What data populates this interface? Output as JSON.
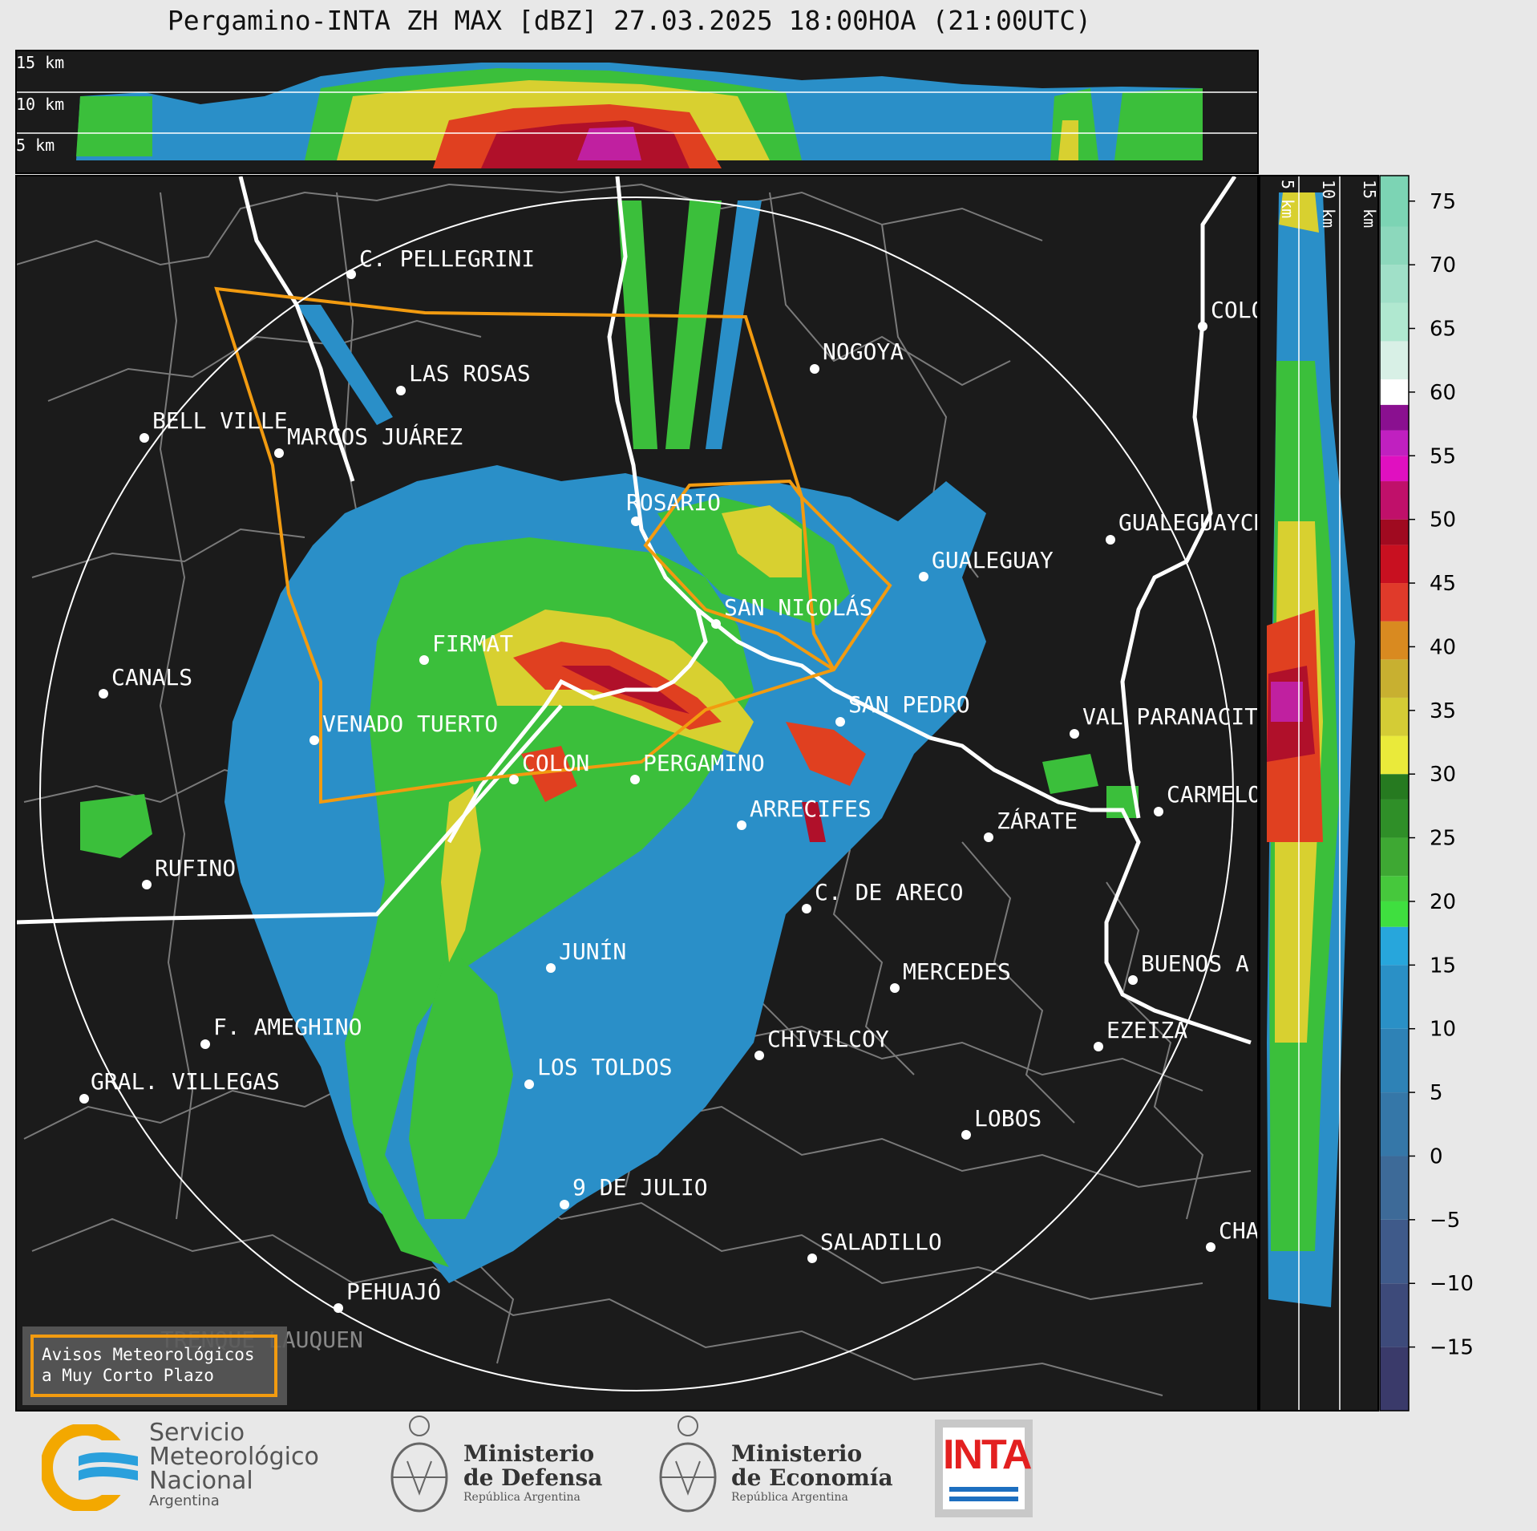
{
  "title": "Pergamino-INTA ZH MAX [dBZ] 27.03.2025 18:00HOA (21:00UTC)",
  "cross_section_top": {
    "labels": [
      "15 km",
      "10 km",
      "5 km"
    ]
  },
  "cross_section_right": {
    "labels": [
      "5 km",
      "10 km",
      "15 km"
    ]
  },
  "colorbar": {
    "ticks": [
      "75",
      "70",
      "65",
      "60",
      "55",
      "50",
      "45",
      "40",
      "35",
      "30",
      "25",
      "20",
      "15",
      "10",
      "5",
      "0",
      "−5",
      "−10",
      "−15"
    ],
    "range": [
      -20,
      77
    ]
  },
  "cities": [
    {
      "name": "C. PELLEGRINI"
    },
    {
      "name": "LAS ROSAS"
    },
    {
      "name": "NOGOYA"
    },
    {
      "name": "BELL VILLE"
    },
    {
      "name": "MARCOS JUÁREZ"
    },
    {
      "name": "ROSARIO"
    },
    {
      "name": "GUALEGUAYCH"
    },
    {
      "name": "GUALEGUAY"
    },
    {
      "name": "SAN NICOLÁS"
    },
    {
      "name": "FIRMAT"
    },
    {
      "name": "CANALS"
    },
    {
      "name": "SAN PEDRO"
    },
    {
      "name": "VENADO TUERTO"
    },
    {
      "name": "VAL PARANACIT"
    },
    {
      "name": "COLON"
    },
    {
      "name": "PERGAMINO"
    },
    {
      "name": "CARMELO"
    },
    {
      "name": "ARRECIFES"
    },
    {
      "name": "ZÁRATE"
    },
    {
      "name": "RUFINO"
    },
    {
      "name": "C. DE ARECO"
    },
    {
      "name": "JUNÍN"
    },
    {
      "name": "MERCEDES"
    },
    {
      "name": "BUENOS A"
    },
    {
      "name": "F. AMEGHINO"
    },
    {
      "name": "EZEIZA"
    },
    {
      "name": "CHIVILCOY"
    },
    {
      "name": "GRAL. VILLEGAS"
    },
    {
      "name": "LOS TOLDOS"
    },
    {
      "name": "LOBOS"
    },
    {
      "name": "9 DE JULIO"
    },
    {
      "name": "SALADILLO"
    },
    {
      "name": "CHA"
    },
    {
      "name": "PEHUAJÓ"
    },
    {
      "name": "TRENQUE LAUQUEN"
    },
    {
      "name": "COLO"
    }
  ],
  "warning_box": {
    "line1": "Avisos Meteorológicos",
    "line2": "a Muy Corto Plazo"
  },
  "logos": {
    "smn": {
      "l1": "Servicio",
      "l2": "Meteorológico",
      "l3": "Nacional",
      "l4": "Argentina"
    },
    "defensa": {
      "l1": "Ministerio",
      "l2": "de Defensa",
      "l3": "República Argentina"
    },
    "economia": {
      "l1": "Ministerio",
      "l2": "de Economía",
      "l3": "República Argentina"
    },
    "inta": "INTA"
  },
  "colors": {
    "background": "#1b1b1b",
    "warning": "#f29b10",
    "range_ring": "#ffffff"
  }
}
